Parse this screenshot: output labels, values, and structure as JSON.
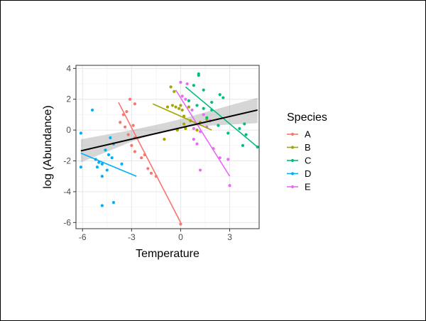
{
  "chart_data": {
    "type": "scatter",
    "xlabel": "Temperature",
    "ylabel": "log (Abundance)",
    "xlim": [
      -6.4,
      4.8
    ],
    "ylim": [
      -6.4,
      4.2
    ],
    "x_ticks": [
      -6,
      -3,
      0,
      3
    ],
    "y_ticks": [
      -6,
      -4,
      -2,
      0,
      2,
      4
    ],
    "grid": true,
    "legend": {
      "title": "Species",
      "placement": "right"
    },
    "series": [
      {
        "name": "A",
        "color": "#F8766D",
        "points": [
          [
            -3.1,
            2.0
          ],
          [
            -2.8,
            1.7
          ],
          [
            -3.3,
            1.2
          ],
          [
            -3.5,
            1.0
          ],
          [
            -3.7,
            0.5
          ],
          [
            -3.4,
            0.2
          ],
          [
            -2.9,
            0.3
          ],
          [
            -3.2,
            -0.3
          ],
          [
            -2.8,
            -0.5
          ],
          [
            -3.0,
            -1.0
          ],
          [
            -2.8,
            -1.4
          ],
          [
            -2.4,
            -1.8
          ],
          [
            -2.2,
            -1.6
          ],
          [
            -2.0,
            -2.5
          ],
          [
            -1.8,
            -2.8
          ],
          [
            -1.5,
            -3.0
          ],
          [
            0.0,
            -6.1
          ]
        ],
        "fit": [
          [
            -3.8,
            1.8
          ],
          [
            0.0,
            -6.0
          ]
        ]
      },
      {
        "name": "B",
        "color": "#A3A500",
        "points": [
          [
            -0.6,
            2.8
          ],
          [
            -0.4,
            2.5
          ],
          [
            -0.8,
            1.5
          ],
          [
            -0.5,
            1.6
          ],
          [
            -0.3,
            1.5
          ],
          [
            -0.1,
            1.4
          ],
          [
            0.0,
            1.6
          ],
          [
            0.1,
            1.3
          ],
          [
            0.2,
            0.9
          ],
          [
            0.5,
            1.5
          ],
          [
            0.2,
            0.4
          ],
          [
            0.6,
            0.6
          ],
          [
            -0.2,
            0.0
          ],
          [
            0.3,
            0.1
          ],
          [
            1.0,
            0.0
          ],
          [
            1.2,
            0.5
          ],
          [
            1.6,
            0.7
          ],
          [
            -1.0,
            -0.6
          ]
        ],
        "fit": [
          [
            -1.7,
            1.7
          ],
          [
            1.9,
            0.0
          ]
        ]
      },
      {
        "name": "C",
        "color": "#00BF7D",
        "points": [
          [
            1.1,
            3.65
          ],
          [
            1.1,
            3.55
          ],
          [
            0.8,
            2.9
          ],
          [
            1.4,
            2.6
          ],
          [
            1.9,
            1.8
          ],
          [
            2.4,
            2.3
          ],
          [
            2.6,
            2.1
          ],
          [
            0.5,
            1.9
          ],
          [
            1.0,
            1.6
          ],
          [
            1.4,
            1.4
          ],
          [
            1.9,
            1.3
          ],
          [
            1.6,
            0.8
          ],
          [
            2.3,
            0.3
          ],
          [
            3.6,
            0.1
          ],
          [
            3.9,
            0.4
          ],
          [
            4.0,
            -0.3
          ],
          [
            2.9,
            -0.2
          ],
          [
            3.8,
            -1.0
          ],
          [
            4.7,
            -1.1
          ]
        ],
        "fit": [
          [
            0.3,
            2.8
          ],
          [
            4.7,
            -1.1
          ]
        ]
      },
      {
        "name": "D",
        "color": "#00B0F6",
        "points": [
          [
            -5.4,
            1.3
          ],
          [
            -6.1,
            -0.2
          ],
          [
            -4.3,
            -0.5
          ],
          [
            -4.1,
            -0.9
          ],
          [
            -4.6,
            -1.3
          ],
          [
            -4.4,
            -1.6
          ],
          [
            -4.2,
            -1.8
          ],
          [
            -5.2,
            -1.9
          ],
          [
            -5.0,
            -2.1
          ],
          [
            -4.8,
            -2.2
          ],
          [
            -3.6,
            -2.2
          ],
          [
            -5.1,
            -2.4
          ],
          [
            -4.5,
            -2.6
          ],
          [
            -4.8,
            -3.0
          ],
          [
            -6.1,
            -2.4
          ],
          [
            -4.1,
            -4.7
          ],
          [
            -4.8,
            -4.9
          ]
        ],
        "fit": [
          [
            -6.1,
            -1.5
          ],
          [
            -2.7,
            -3.0
          ]
        ]
      },
      {
        "name": "E",
        "color": "#E76BF3",
        "points": [
          [
            0.0,
            3.1
          ],
          [
            0.4,
            3.0
          ],
          [
            0.1,
            2.2
          ],
          [
            0.3,
            2.0
          ],
          [
            0.7,
            1.3
          ],
          [
            1.4,
            1.0
          ],
          [
            1.8,
            0.6
          ],
          [
            0.8,
            0.1
          ],
          [
            1.2,
            -0.1
          ],
          [
            1.6,
            0.2
          ],
          [
            0.8,
            -0.6
          ],
          [
            1.0,
            -0.9
          ],
          [
            2.0,
            -1.2
          ],
          [
            2.4,
            -1.8
          ],
          [
            2.9,
            -1.9
          ],
          [
            1.2,
            -2.6
          ],
          [
            3.0,
            -3.6
          ]
        ],
        "fit": [
          [
            -0.3,
            2.6
          ],
          [
            3.0,
            -3.0
          ]
        ]
      }
    ],
    "overall_fit": {
      "color": "#000000",
      "line": [
        [
          -6.1,
          -1.35
        ],
        [
          4.7,
          1.3
        ]
      ],
      "ci_lower": [
        [
          -6.1,
          -2.1
        ],
        [
          -3.0,
          -0.75
        ],
        [
          -1.0,
          -0.05
        ],
        [
          0.5,
          0.25
        ],
        [
          2.0,
          0.3
        ],
        [
          4.7,
          0.45
        ]
      ],
      "ci_upper": [
        [
          -6.1,
          -0.6
        ],
        [
          -3.0,
          0.0
        ],
        [
          -1.0,
          0.45
        ],
        [
          0.5,
          0.85
        ],
        [
          2.0,
          1.3
        ],
        [
          4.7,
          2.1
        ]
      ]
    }
  }
}
